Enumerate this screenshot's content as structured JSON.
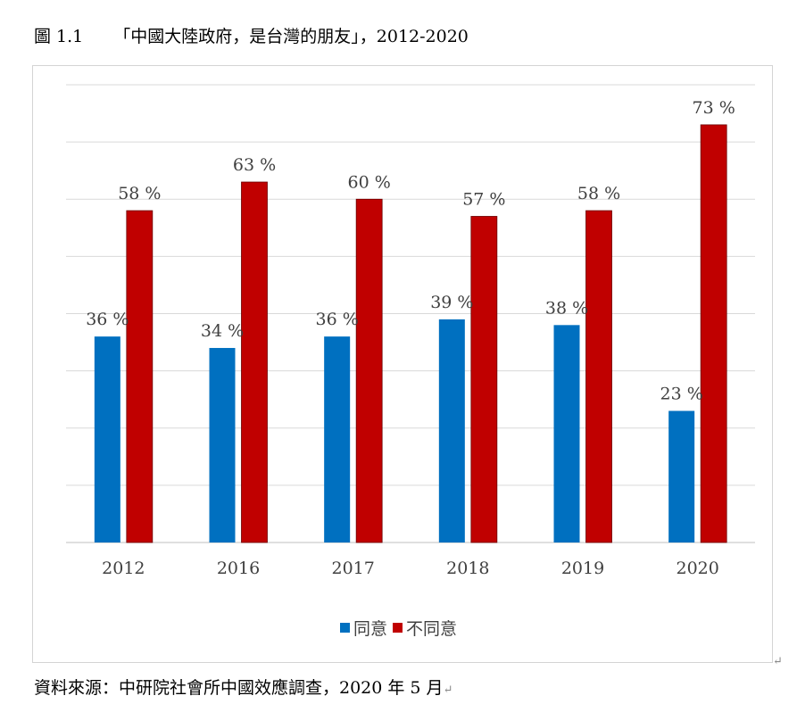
{
  "figure": {
    "number": "圖 1.1",
    "title": "「中國大陸政府，是台灣的朋友」，2012-2020"
  },
  "source_note": "資料來源：中研院社會所中國效應調查，2020 年 5 月",
  "chart_data": {
    "type": "bar",
    "title": "",
    "xlabel": "",
    "ylabel": "",
    "categories": [
      "2012",
      "2016",
      "2017",
      "2018",
      "2019",
      "2020"
    ],
    "series": [
      {
        "name": "同意",
        "values": [
          36,
          34,
          36,
          39,
          38,
          23
        ],
        "color": "#0070C0"
      },
      {
        "name": "不同意",
        "values": [
          58,
          63,
          60,
          57,
          58,
          73
        ],
        "color": "#C00000"
      }
    ],
    "value_label_suffix": " %",
    "ylim": [
      0,
      80
    ],
    "grid": true,
    "y_tick_labels_shown": false,
    "legend": "bottom-center"
  }
}
